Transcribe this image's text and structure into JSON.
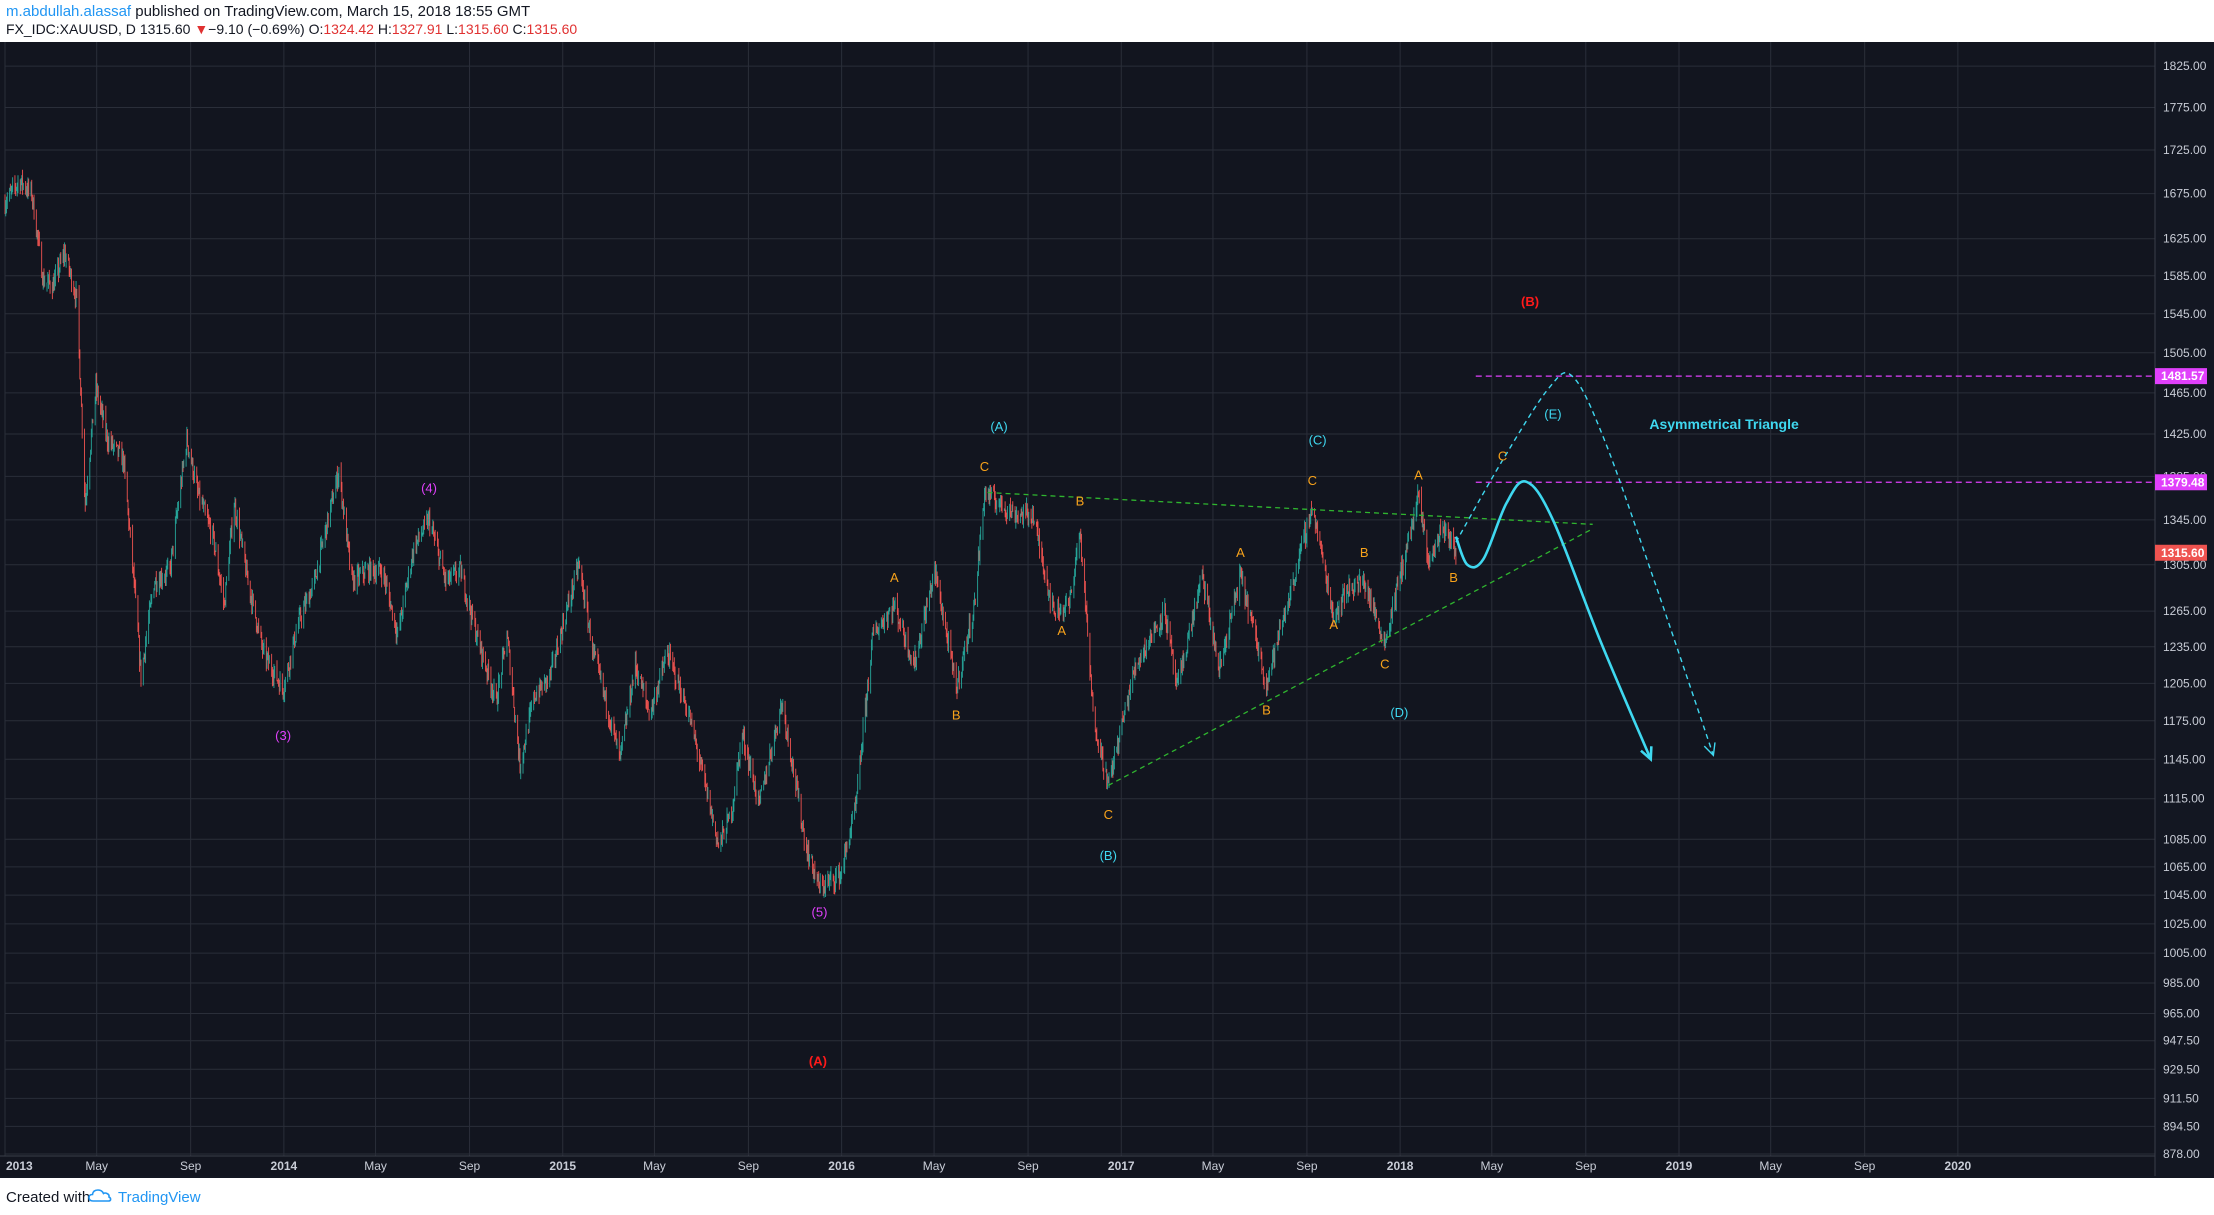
{
  "header": {
    "author": "m.abdullah.alassaf",
    "published": "published on TradingView.com, March 15, 2018 18:55 GMT",
    "symbol": "FX_IDC:XAUUSD, D",
    "last": "1315.60",
    "change_arrow": "▼",
    "change": "−9.10 (−0.69%)",
    "o_label": "O:",
    "o_value": "1324.42",
    "h_label": "H:",
    "h_value": "1327.91",
    "l_label": "L:",
    "l_value": "1315.60",
    "c_label": "C:",
    "c_value": "1315.60"
  },
  "footer": {
    "created_with": "Created with",
    "brand": "TradingView",
    "logo_icon": "tradingview-cloud-icon"
  },
  "colors": {
    "background": "#131722",
    "grid": "#2a2e39",
    "candle_up": "#26a69a",
    "candle_down": "#ef5350",
    "wave_cyan": "#3fd8f0",
    "wave_orange": "#f7a21b",
    "wave_magenta": "#e040fb",
    "wave_red": "#ff1a1a",
    "trendline": "#2fb52f",
    "hline": "#e040fb"
  },
  "chart_data": {
    "type": "candlestick",
    "symbol": "FX_IDC:XAUUSD",
    "timeframe": "D",
    "x_range": [
      "2013-01-01",
      "2020-09-15"
    ],
    "ylim": [
      878,
      1840
    ],
    "y_ticks": [
      "1825.00",
      "1775.00",
      "1725.00",
      "1675.00",
      "1625.00",
      "1585.00",
      "1545.00",
      "1505.00",
      "1465.00",
      "1425.00",
      "1385.00",
      "1345.00",
      "1305.00",
      "1265.00",
      "1235.00",
      "1205.00",
      "1175.00",
      "1145.00",
      "1115.00",
      "1085.00",
      "1065.00",
      "1045.00",
      "1025.00",
      "1005.00",
      "985.00",
      "965.00",
      "947.50",
      "929.50",
      "911.50",
      "894.50",
      "878.00"
    ],
    "x_ticks": [
      {
        "label": "2013",
        "date": "2013-01-01"
      },
      {
        "label": "May",
        "date": "2013-05-01"
      },
      {
        "label": "Sep",
        "date": "2013-09-01"
      },
      {
        "label": "2014",
        "date": "2014-01-01"
      },
      {
        "label": "May",
        "date": "2014-05-01"
      },
      {
        "label": "Sep",
        "date": "2014-09-01"
      },
      {
        "label": "2015",
        "date": "2015-01-01"
      },
      {
        "label": "May",
        "date": "2015-05-01"
      },
      {
        "label": "Sep",
        "date": "2015-09-01"
      },
      {
        "label": "2016",
        "date": "2016-01-01"
      },
      {
        "label": "May",
        "date": "2016-05-01"
      },
      {
        "label": "Sep",
        "date": "2016-09-01"
      },
      {
        "label": "2017",
        "date": "2017-01-01"
      },
      {
        "label": "May",
        "date": "2017-05-01"
      },
      {
        "label": "Sep",
        "date": "2017-09-01"
      },
      {
        "label": "2018",
        "date": "2018-01-01"
      },
      {
        "label": "May",
        "date": "2018-05-01"
      },
      {
        "label": "Sep",
        "date": "2018-09-01"
      },
      {
        "label": "2019",
        "date": "2019-01-01"
      },
      {
        "label": "May",
        "date": "2019-05-01"
      },
      {
        "label": "Sep",
        "date": "2019-09-01"
      },
      {
        "label": "2020",
        "date": "2020-01-01"
      }
    ],
    "price_path": [
      [
        "2013-01-01",
        1665
      ],
      [
        "2013-01-20",
        1690
      ],
      [
        "2013-02-05",
        1675
      ],
      [
        "2013-02-20",
        1580
      ],
      [
        "2013-03-05",
        1575
      ],
      [
        "2013-03-20",
        1610
      ],
      [
        "2013-04-05",
        1560
      ],
      [
        "2013-04-16",
        1360
      ],
      [
        "2013-04-30",
        1470
      ],
      [
        "2013-05-15",
        1420
      ],
      [
        "2013-06-05",
        1400
      ],
      [
        "2013-06-20",
        1280
      ],
      [
        "2013-06-28",
        1210
      ],
      [
        "2013-07-15",
        1290
      ],
      [
        "2013-08-05",
        1300
      ],
      [
        "2013-08-27",
        1420
      ],
      [
        "2013-09-10",
        1370
      ],
      [
        "2013-09-30",
        1330
      ],
      [
        "2013-10-15",
        1270
      ],
      [
        "2013-10-28",
        1360
      ],
      [
        "2013-11-15",
        1290
      ],
      [
        "2013-12-05",
        1230
      ],
      [
        "2013-12-31",
        1200
      ],
      [
        "2014-01-20",
        1255
      ],
      [
        "2014-02-10",
        1290
      ],
      [
        "2014-03-14",
        1390
      ],
      [
        "2014-03-31",
        1290
      ],
      [
        "2014-04-20",
        1300
      ],
      [
        "2014-05-10",
        1300
      ],
      [
        "2014-05-30",
        1245
      ],
      [
        "2014-06-20",
        1320
      ],
      [
        "2014-07-10",
        1345
      ],
      [
        "2014-08-01",
        1290
      ],
      [
        "2014-08-20",
        1300
      ],
      [
        "2014-09-10",
        1245
      ],
      [
        "2014-10-06",
        1190
      ],
      [
        "2014-10-20",
        1245
      ],
      [
        "2014-11-06",
        1140
      ],
      [
        "2014-11-25",
        1195
      ],
      [
        "2014-12-15",
        1210
      ],
      [
        "2015-01-22",
        1305
      ],
      [
        "2015-02-10",
        1230
      ],
      [
        "2015-03-17",
        1145
      ],
      [
        "2015-04-06",
        1220
      ],
      [
        "2015-04-25",
        1180
      ],
      [
        "2015-05-18",
        1230
      ],
      [
        "2015-06-15",
        1180
      ],
      [
        "2015-07-24",
        1080
      ],
      [
        "2015-08-10",
        1105
      ],
      [
        "2015-08-24",
        1165
      ],
      [
        "2015-09-15",
        1110
      ],
      [
        "2015-10-15",
        1190
      ],
      [
        "2015-11-15",
        1080
      ],
      [
        "2015-12-03",
        1050
      ],
      [
        "2015-12-31",
        1060
      ],
      [
        "2016-01-20",
        1110
      ],
      [
        "2016-02-11",
        1245
      ],
      [
        "2016-03-10",
        1270
      ],
      [
        "2016-04-05",
        1220
      ],
      [
        "2016-05-02",
        1300
      ],
      [
        "2016-05-30",
        1200
      ],
      [
        "2016-06-23",
        1270
      ],
      [
        "2016-07-06",
        1370
      ],
      [
        "2016-08-15",
        1350
      ],
      [
        "2016-09-07",
        1350
      ],
      [
        "2016-10-04",
        1265
      ],
      [
        "2016-10-25",
        1270
      ],
      [
        "2016-11-08",
        1335
      ],
      [
        "2016-11-25",
        1180
      ],
      [
        "2016-12-15",
        1125
      ],
      [
        "2017-01-20",
        1220
      ],
      [
        "2017-02-27",
        1265
      ],
      [
        "2017-03-15",
        1200
      ],
      [
        "2017-04-17",
        1295
      ],
      [
        "2017-05-09",
        1215
      ],
      [
        "2017-06-06",
        1295
      ],
      [
        "2017-07-10",
        1205
      ],
      [
        "2017-08-10",
        1280
      ],
      [
        "2017-09-08",
        1357
      ],
      [
        "2017-10-06",
        1260
      ],
      [
        "2017-10-25",
        1285
      ],
      [
        "2017-11-15",
        1290
      ],
      [
        "2017-12-12",
        1238
      ],
      [
        "2018-01-25",
        1365
      ],
      [
        "2018-02-08",
        1306
      ],
      [
        "2018-02-26",
        1340
      ],
      [
        "2018-03-15",
        1315.6
      ]
    ]
  },
  "annotations": {
    "waves": [
      {
        "text": "(3)",
        "date": "2013-12-31",
        "price": 1160,
        "color": "#e040fb"
      },
      {
        "text": "(4)",
        "date": "2014-07-10",
        "price": 1370,
        "color": "#e040fb"
      },
      {
        "text": "(5)",
        "date": "2015-12-03",
        "price": 1030,
        "color": "#e040fb"
      },
      {
        "text": "(A)",
        "date": "2015-12-01",
        "price": 932,
        "color": "#ff1a1a"
      },
      {
        "text": "(B)",
        "date": "2018-06-20",
        "price": 1553,
        "color": "#ff1a1a"
      },
      {
        "text": "A",
        "date": "2016-03-10",
        "price": 1290,
        "color": "#f7a21b"
      },
      {
        "text": "B",
        "date": "2016-05-30",
        "price": 1176,
        "color": "#f7a21b"
      },
      {
        "text": "C",
        "date": "2016-07-06",
        "price": 1390,
        "color": "#f7a21b"
      },
      {
        "text": "(A)",
        "date": "2016-07-25",
        "price": 1428,
        "color": "#3fd8f0"
      },
      {
        "text": "B",
        "date": "2016-11-08",
        "price": 1358,
        "color": "#f7a21b"
      },
      {
        "text": "A",
        "date": "2016-10-15",
        "price": 1245,
        "color": "#f7a21b"
      },
      {
        "text": "C",
        "date": "2016-12-15",
        "price": 1100,
        "color": "#f7a21b"
      },
      {
        "text": "(B)",
        "date": "2016-12-15",
        "price": 1070,
        "color": "#3fd8f0"
      },
      {
        "text": "A",
        "date": "2017-06-06",
        "price": 1312,
        "color": "#f7a21b"
      },
      {
        "text": "B",
        "date": "2017-07-10",
        "price": 1180,
        "color": "#f7a21b"
      },
      {
        "text": "C",
        "date": "2017-09-08",
        "price": 1377,
        "color": "#f7a21b"
      },
      {
        "text": "(C)",
        "date": "2017-09-15",
        "price": 1415,
        "color": "#3fd8f0"
      },
      {
        "text": "A",
        "date": "2017-10-06",
        "price": 1250,
        "color": "#f7a21b"
      },
      {
        "text": "B",
        "date": "2017-11-15",
        "price": 1312,
        "color": "#f7a21b"
      },
      {
        "text": "C",
        "date": "2017-12-12",
        "price": 1217,
        "color": "#f7a21b"
      },
      {
        "text": "(D)",
        "date": "2017-12-31",
        "price": 1178,
        "color": "#3fd8f0"
      },
      {
        "text": "A",
        "date": "2018-01-25",
        "price": 1382,
        "color": "#f7a21b"
      },
      {
        "text": "B",
        "date": "2018-03-12",
        "price": 1290,
        "color": "#f7a21b"
      },
      {
        "text": "C",
        "date": "2018-05-15",
        "price": 1400,
        "color": "#f7a21b"
      },
      {
        "text": "(E)",
        "date": "2018-07-20",
        "price": 1440,
        "color": "#3fd8f0"
      }
    ],
    "pattern_label": {
      "text": "Asymmetrical Triangle",
      "date": "2019-03-01",
      "price": 1430,
      "color": "#3fd8f0"
    },
    "trendlines": [
      {
        "from": [
          "2016-07-10",
          1370
        ],
        "to": [
          "2018-09-10",
          1341
        ]
      },
      {
        "from": [
          "2016-12-15",
          1125
        ],
        "to": [
          "2018-09-10",
          1337
        ]
      }
    ],
    "horizontal_levels": [
      {
        "label": "1481.57",
        "price": 1481.57,
        "from_date": "2018-04-10"
      },
      {
        "label": "1379.48",
        "price": 1379.48,
        "from_date": "2018-04-10"
      }
    ],
    "current_price_label": "1315.60",
    "projection_solid": [
      [
        "2018-03-15",
        1330
      ],
      [
        "2018-03-30",
        1305
      ],
      [
        "2018-04-20",
        1310
      ],
      [
        "2018-05-20",
        1360
      ],
      [
        "2018-06-15",
        1380
      ],
      [
        "2018-07-20",
        1345
      ],
      [
        "2018-09-20",
        1240
      ],
      [
        "2018-11-25",
        1145
      ]
    ],
    "projection_dashed": [
      [
        "2018-03-15",
        1325
      ],
      [
        "2018-05-15",
        1400
      ],
      [
        "2018-07-15",
        1470
      ],
      [
        "2018-08-15",
        1481
      ],
      [
        "2018-09-25",
        1420
      ],
      [
        "2018-11-25",
        1300
      ],
      [
        "2019-02-15",
        1148
      ]
    ]
  }
}
